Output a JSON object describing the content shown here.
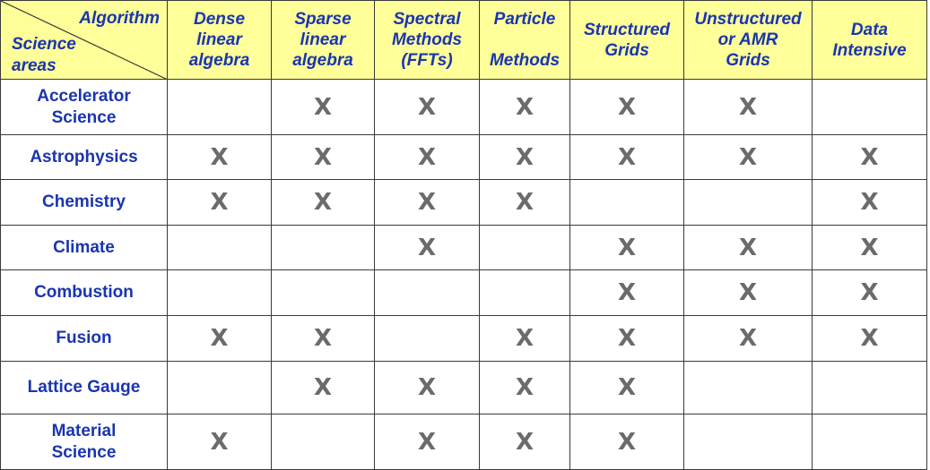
{
  "corner": {
    "algorithm_label": "Algorithm",
    "science_label_1": "Science",
    "science_label_2": "areas"
  },
  "columns": [
    {
      "line1": "Dense",
      "line2": "linear",
      "line3": "algebra"
    },
    {
      "line1": "Sparse",
      "line2": "linear",
      "line3": "algebra"
    },
    {
      "line1": "Spectral",
      "line2": "Methods",
      "line3": "(FFTs)"
    },
    {
      "line1": "Particle",
      "line2": "",
      "line3": "Methods"
    },
    {
      "line1": "Structured",
      "line2": "Grids",
      "line3": ""
    },
    {
      "line1": "Unstructured",
      "line2": "or AMR",
      "line3": "Grids"
    },
    {
      "line1": "Data",
      "line2": "Intensive",
      "line3": ""
    }
  ],
  "rows": [
    {
      "line1": "Accelerator",
      "line2": "Science",
      "cells": [
        "",
        "X",
        "X",
        "X",
        "X",
        "X",
        ""
      ]
    },
    {
      "line1": "Astrophysics",
      "line2": "",
      "cells": [
        "X",
        "X",
        "X",
        "X",
        "X",
        "X",
        "X"
      ]
    },
    {
      "line1": "Chemistry",
      "line2": "",
      "cells": [
        "X",
        "X",
        "X",
        "X",
        "",
        "",
        "X"
      ]
    },
    {
      "line1": "Climate",
      "line2": "",
      "cells": [
        "",
        "",
        "X",
        "",
        "X",
        "X",
        "X"
      ]
    },
    {
      "line1": "Combustion",
      "line2": "",
      "cells": [
        "",
        "",
        "",
        "",
        "X",
        "X",
        "X"
      ]
    },
    {
      "line1": "Fusion",
      "line2": "",
      "cells": [
        "X",
        "X",
        "",
        "X",
        "X",
        "X",
        "X"
      ]
    },
    {
      "line1": "Lattice Gauge",
      "line2": "",
      "cells": [
        "",
        "X",
        "X",
        "X",
        "X",
        "",
        ""
      ]
    },
    {
      "line1": "Material",
      "line2": "Science",
      "cells": [
        "X",
        "",
        "X",
        "X",
        "X",
        "",
        ""
      ]
    }
  ]
}
